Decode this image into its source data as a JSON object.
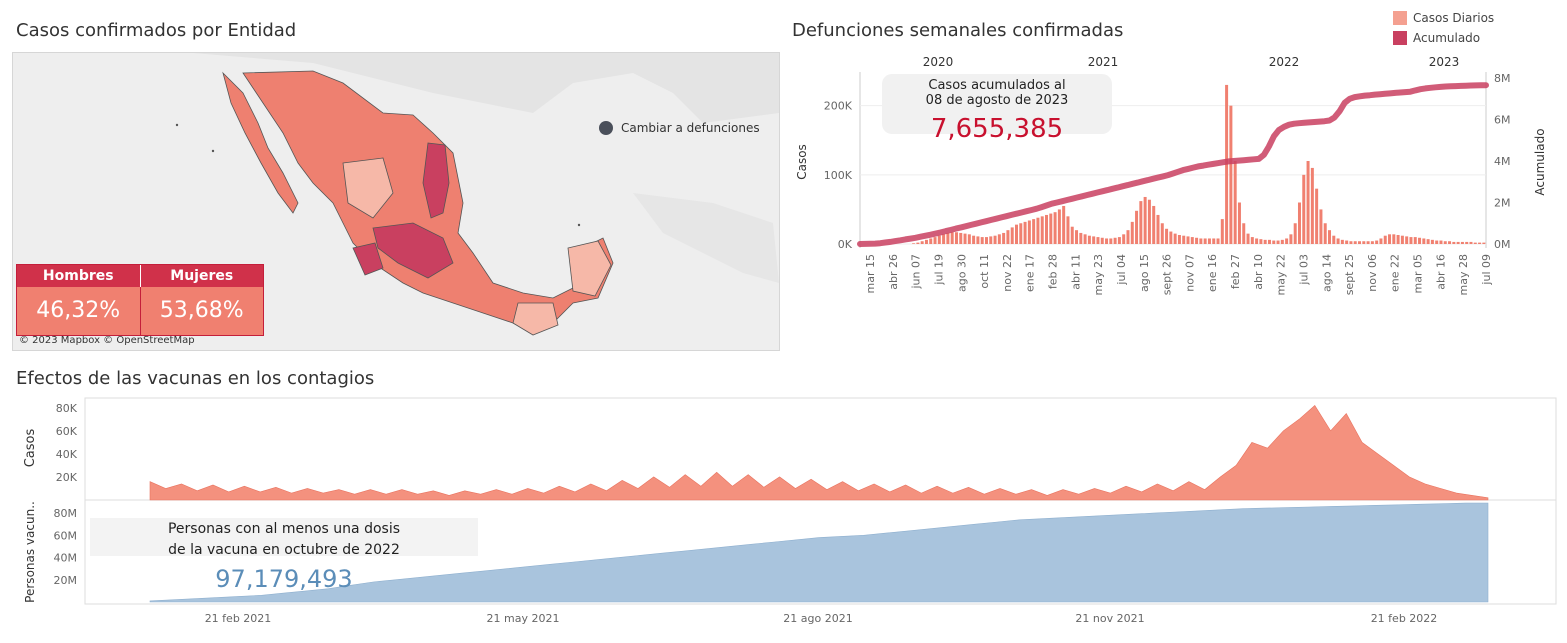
{
  "map": {
    "title": "Casos confirmados por Entidad",
    "toggle_label": "Cambiar a defunciones",
    "attribution": "© 2023 Mapbox © OpenStreetMap",
    "gender_table": {
      "headers": [
        "Hombres",
        "Mujeres"
      ],
      "values": [
        "46,32%",
        "53,68%"
      ]
    },
    "colors": {
      "high": "#c94060",
      "mid": "#ee8070",
      "low": "#f6b8a8",
      "water": "#eeeeee",
      "land": "#e6e6e6"
    }
  },
  "weekly": {
    "title": "Defunciones semanales confirmadas",
    "legend": [
      {
        "label": "Casos Diarios",
        "color": "#f4a090"
      },
      {
        "label": "Acumulado",
        "color": "#c94060"
      }
    ],
    "callout": {
      "line1": "Casos acumulados al",
      "line2": "08 de agosto de 2023",
      "value": "7,655,385"
    },
    "y_left_label": "Casos",
    "y_right_label": "Acumulado"
  },
  "vaccines": {
    "title": "Efectos de las vacunas en los contagios",
    "callout": {
      "line1": "Personas con al menos una dosis",
      "line2": "de la vacuna en octubre de 2022",
      "value": "97,179,493"
    },
    "cases_label": "Casos",
    "vacc_label": "Personas vacun.."
  },
  "chart_data": [
    {
      "type": "bar",
      "title": "Defunciones semanales confirmadas",
      "year_labels": [
        "2020",
        "2021",
        "2022",
        "2023"
      ],
      "x_tick_labels": [
        "mar 15",
        "abr 26",
        "jun 07",
        "jul 19",
        "ago 30",
        "oct 11",
        "nov 22",
        "ene 17",
        "feb 28",
        "abr 11",
        "may 23",
        "jul 04",
        "ago 15",
        "sept 26",
        "nov 07",
        "ene 16",
        "feb 27",
        "abr 10",
        "may 22",
        "jul 03",
        "ago 14",
        "sept 25",
        "nov 06",
        "ene 22",
        "mar 05",
        "abr 16",
        "may 28",
        "jul 09"
      ],
      "ylabel": "Casos",
      "y2label": "Acumulado",
      "ylim": [
        0,
        240000
      ],
      "y_ticks": [
        "0K",
        "100K",
        "200K"
      ],
      "y2lim": [
        0,
        8000000
      ],
      "y2_ticks": [
        "0M",
        "2M",
        "4M",
        "6M",
        "8M"
      ],
      "series": [
        {
          "name": "Casos Diarios",
          "type": "bar",
          "values": [
            0,
            0,
            0,
            0,
            0,
            0,
            0,
            0,
            0,
            0,
            0,
            0,
            1000,
            2000,
            4000,
            6000,
            8000,
            10000,
            12000,
            14000,
            16000,
            17000,
            17000,
            16000,
            15000,
            14000,
            12000,
            11000,
            10000,
            10000,
            11000,
            12000,
            14000,
            16000,
            20000,
            24000,
            28000,
            30000,
            32000,
            34000,
            36000,
            38000,
            40000,
            42000,
            44000,
            46000,
            50000,
            55000,
            40000,
            25000,
            20000,
            16000,
            14000,
            12000,
            11000,
            10000,
            9000,
            8000,
            8000,
            9000,
            10000,
            14000,
            20000,
            32000,
            48000,
            62000,
            68000,
            64000,
            55000,
            42000,
            30000,
            22000,
            18000,
            15000,
            13000,
            12000,
            11000,
            10000,
            9000,
            8000,
            8000,
            8000,
            8000,
            8000,
            36000,
            230000,
            200000,
            120000,
            60000,
            30000,
            15000,
            10000,
            8000,
            7000,
            6000,
            6000,
            5000,
            5000,
            6000,
            8000,
            14000,
            30000,
            60000,
            100000,
            120000,
            110000,
            80000,
            50000,
            30000,
            20000,
            12000,
            8000,
            6000,
            5000,
            4000,
            4000,
            4000,
            4000,
            4000,
            4000,
            5000,
            8000,
            12000,
            14000,
            14000,
            13000,
            12000,
            11000,
            10000,
            10000,
            9000,
            8000,
            7000,
            6000,
            5000,
            5000,
            4000,
            4000,
            3000,
            3000,
            3000,
            3000,
            3000,
            2000,
            2000,
            2000
          ]
        },
        {
          "name": "Acumulado",
          "type": "line",
          "values": [
            0,
            5000,
            10000,
            20000,
            40000,
            70000,
            100000,
            140000,
            180000,
            220000,
            260000,
            300000,
            350000,
            400000,
            450000,
            500000,
            560000,
            620000,
            680000,
            740000,
            800000,
            860000,
            920000,
            980000,
            1040000,
            1100000,
            1160000,
            1220000,
            1280000,
            1340000,
            1400000,
            1460000,
            1520000,
            1580000,
            1640000,
            1700000,
            1780000,
            1860000,
            1940000,
            2000000,
            2060000,
            2120000,
            2180000,
            2240000,
            2300000,
            2360000,
            2420000,
            2480000,
            2540000,
            2600000,
            2660000,
            2720000,
            2780000,
            2840000,
            2900000,
            2960000,
            3020000,
            3080000,
            3140000,
            3200000,
            3260000,
            3320000,
            3400000,
            3480000,
            3560000,
            3620000,
            3680000,
            3740000,
            3780000,
            3820000,
            3860000,
            3900000,
            3940000,
            3980000,
            4000000,
            4020000,
            4040000,
            4060000,
            4080000,
            4100000,
            4300000,
            4700000,
            5200000,
            5500000,
            5650000,
            5750000,
            5800000,
            5820000,
            5840000,
            5860000,
            5880000,
            5900000,
            5920000,
            5950000,
            6100000,
            6400000,
            6800000,
            7000000,
            7080000,
            7120000,
            7150000,
            7170000,
            7200000,
            7220000,
            7240000,
            7260000,
            7280000,
            7300000,
            7320000,
            7340000,
            7400000,
            7460000,
            7500000,
            7530000,
            7550000,
            7570000,
            7590000,
            7600000,
            7610000,
            7620000,
            7630000,
            7640000,
            7645000,
            7650000,
            7655385
          ]
        }
      ]
    },
    {
      "type": "area",
      "title": "Efectos de las vacunas en los contagios",
      "x_tick_labels": [
        "21 feb 2021",
        "21 may 2021",
        "21 ago 2021",
        "21 nov 2021",
        "21 feb 2022"
      ],
      "series": [
        {
          "name": "Casos",
          "ylim": [
            0,
            85000
          ],
          "y_ticks": [
            "20K",
            "40K",
            "60K",
            "80K"
          ],
          "values": [
            16000,
            10000,
            14000,
            8000,
            13000,
            7000,
            12000,
            7000,
            11000,
            6000,
            10000,
            6000,
            9000,
            5000,
            9000,
            5000,
            9000,
            5000,
            8000,
            4000,
            8000,
            5000,
            9000,
            5000,
            10000,
            6000,
            12000,
            7000,
            14000,
            8000,
            17000,
            10000,
            20000,
            11000,
            22000,
            12000,
            24000,
            12000,
            22000,
            11000,
            20000,
            10000,
            18000,
            9000,
            16000,
            8000,
            14000,
            7000,
            13000,
            6000,
            12000,
            6000,
            11000,
            5000,
            10000,
            5000,
            9000,
            4000,
            9000,
            5000,
            10000,
            6000,
            12000,
            7000,
            14000,
            8000,
            16000,
            9000,
            20000,
            30000,
            50000,
            45000,
            60000,
            70000,
            82000,
            60000,
            75000,
            50000,
            40000,
            30000,
            20000,
            14000,
            10000,
            6000,
            4000,
            2000
          ]
        },
        {
          "name": "Personas vacun..",
          "ylim": [
            0,
            90000000
          ],
          "y_ticks": [
            "20M",
            "40M",
            "60M",
            "80M"
          ],
          "values": [
            1000000,
            2000000,
            3000000,
            4000000,
            5000000,
            6000000,
            8000000,
            10000000,
            12000000,
            15000000,
            18000000,
            20000000,
            22000000,
            24000000,
            26000000,
            28000000,
            30000000,
            32000000,
            34000000,
            36000000,
            38000000,
            40000000,
            42000000,
            44000000,
            46000000,
            48000000,
            50000000,
            52000000,
            54000000,
            56000000,
            58000000,
            59000000,
            60000000,
            62000000,
            64000000,
            66000000,
            68000000,
            70000000,
            72000000,
            74000000,
            75000000,
            76000000,
            77000000,
            78000000,
            79000000,
            80000000,
            81000000,
            82000000,
            83000000,
            84000000,
            84500000,
            85000000,
            85500000,
            86000000,
            86500000,
            87000000,
            87500000,
            88000000,
            88500000,
            89000000,
            89000000
          ]
        }
      ]
    }
  ]
}
